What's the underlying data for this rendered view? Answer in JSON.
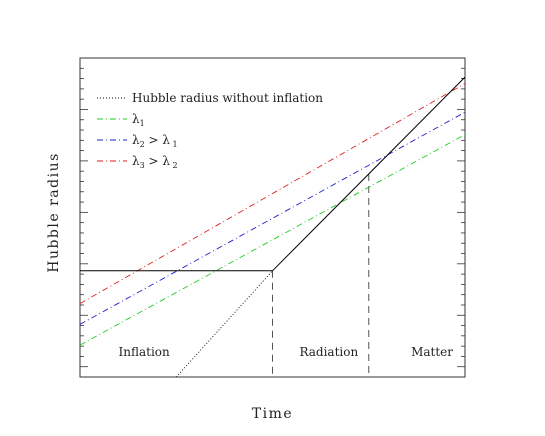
{
  "chart_data": {
    "type": "line",
    "xlabel": "Time",
    "ylabel": "Hubble radius",
    "xlim": [
      0,
      1
    ],
    "ylim": [
      0,
      1
    ],
    "grid": false,
    "legend_position": "top-left",
    "regions": [
      {
        "label": "Inflation",
        "x": 0.1
      },
      {
        "label": "Radiation",
        "x": 0.57
      },
      {
        "label": "Matter",
        "x": 0.86
      }
    ],
    "boundaries": [
      0.5,
      0.75
    ],
    "hubble_radius": {
      "name": "",
      "x": [
        0,
        0.5,
        1
      ],
      "y": [
        0.333,
        0.333,
        0.94
      ]
    },
    "series": [
      {
        "name": "Hubble radius without inflation",
        "color": "#000000",
        "dash": "1,2",
        "x": [
          0.25,
          0.5
        ],
        "y": [
          0,
          0.333
        ]
      },
      {
        "name": "λ1",
        "subscript": "1",
        "base": "λ",
        "color": "#22cc22",
        "dash": "6,3,1,3",
        "x": [
          0,
          1
        ],
        "y": [
          0.1,
          0.76
        ]
      },
      {
        "name": "λ2 > λ1",
        "base": "λ",
        "subscript": "2",
        "relation": ">",
        "rhs_base": "λ",
        "rhs_subscript": "1",
        "color": "#2222cc",
        "dash": "6,3,1,3",
        "x": [
          0,
          1
        ],
        "y": [
          0.165,
          0.83
        ]
      },
      {
        "name": "λ3 > λ2",
        "base": "λ",
        "subscript": "3",
        "relation": ">",
        "rhs_base": "λ",
        "rhs_subscript": "2",
        "color": "#dd2222",
        "dash": "6,3,1,3",
        "x": [
          0,
          1
        ],
        "y": [
          0.23,
          0.92
        ]
      }
    ]
  }
}
